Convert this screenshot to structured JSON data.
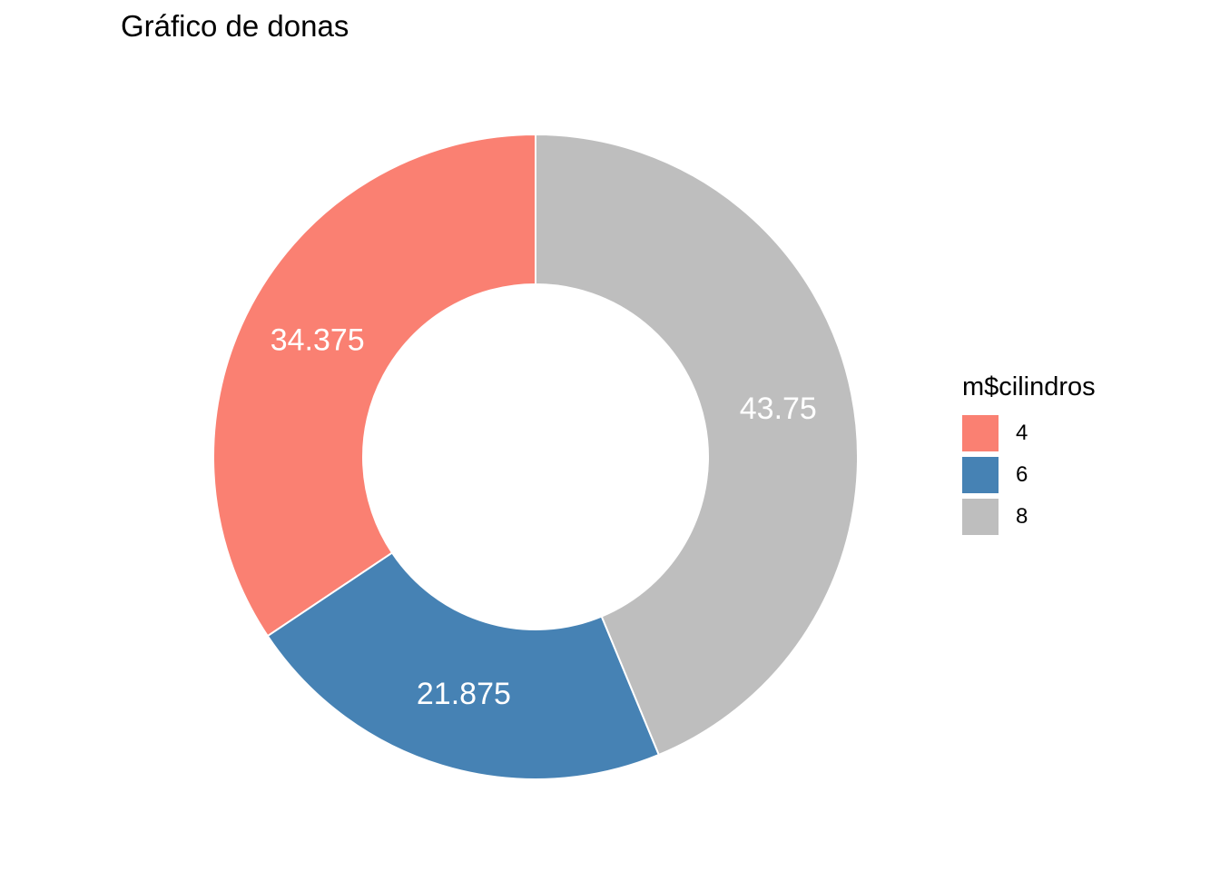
{
  "title": "Gráfico de donas",
  "chart_data": {
    "type": "pie",
    "subtype": "donut",
    "title": "Gráfico de donas",
    "categories": [
      "4",
      "6",
      "8"
    ],
    "values": [
      34.375,
      21.875,
      43.75
    ],
    "labels": [
      "34.375",
      "21.875",
      "43.75"
    ],
    "colors": [
      "#FA8072",
      "#4682B4",
      "#BEBEBE"
    ],
    "total": 100,
    "start_angle_deg": 0,
    "direction": "counterclockwise",
    "inner_radius_ratio": 0.535,
    "label_color": "#ffffff",
    "legend_title": "m$cilindros",
    "legend_position": "right",
    "background": "#ffffff"
  },
  "legend": {
    "title": "m$cilindros",
    "items": [
      {
        "label": "4",
        "color": "#FA8072"
      },
      {
        "label": "6",
        "color": "#4682B4"
      },
      {
        "label": "8",
        "color": "#BEBEBE"
      }
    ]
  }
}
